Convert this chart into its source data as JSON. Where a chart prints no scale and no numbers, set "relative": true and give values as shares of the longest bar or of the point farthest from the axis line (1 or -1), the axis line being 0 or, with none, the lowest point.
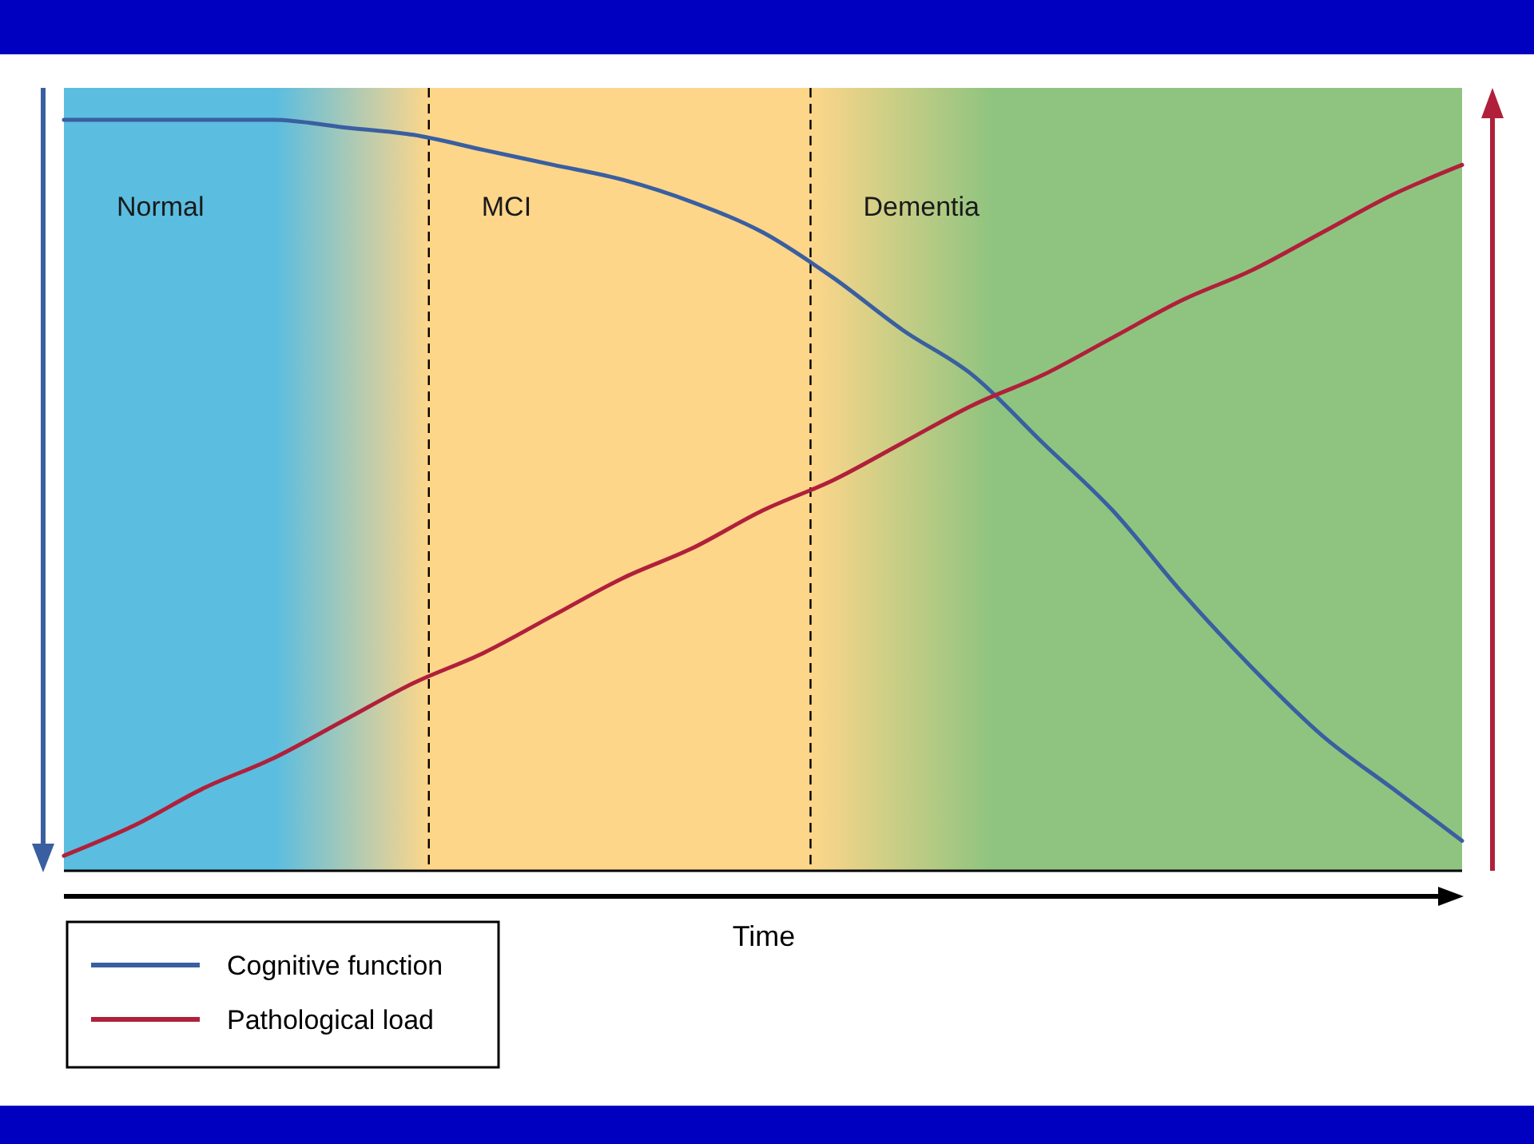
{
  "chart_data": {
    "type": "line",
    "relative": true,
    "xlabel": "Time",
    "categories": [
      null,
      null,
      null,
      null,
      null,
      null,
      null,
      null,
      null,
      null,
      null,
      null,
      null,
      null,
      null,
      null,
      null,
      null,
      null,
      null,
      null
    ],
    "series": [
      {
        "name": "Cognitive function",
        "color": "#3a5fa0",
        "values": [
          1.0,
          1.0,
          1.0,
          1.0,
          0.99,
          0.98,
          0.96,
          0.94,
          0.92,
          0.89,
          0.85,
          0.79,
          0.72,
          0.66,
          0.57,
          0.48,
          0.37,
          0.27,
          0.18,
          0.11,
          0.04
        ]
      },
      {
        "name": "Pathological load",
        "color": "#b0203a",
        "values": [
          0.02,
          0.06,
          0.11,
          0.15,
          0.2,
          0.25,
          0.29,
          0.34,
          0.39,
          0.43,
          0.48,
          0.52,
          0.57,
          0.62,
          0.66,
          0.71,
          0.76,
          0.8,
          0.85,
          0.9,
          0.94
        ]
      }
    ],
    "annotations": [
      "Normal",
      "MCI",
      "Dementia"
    ],
    "legend": "bottom left"
  }
}
